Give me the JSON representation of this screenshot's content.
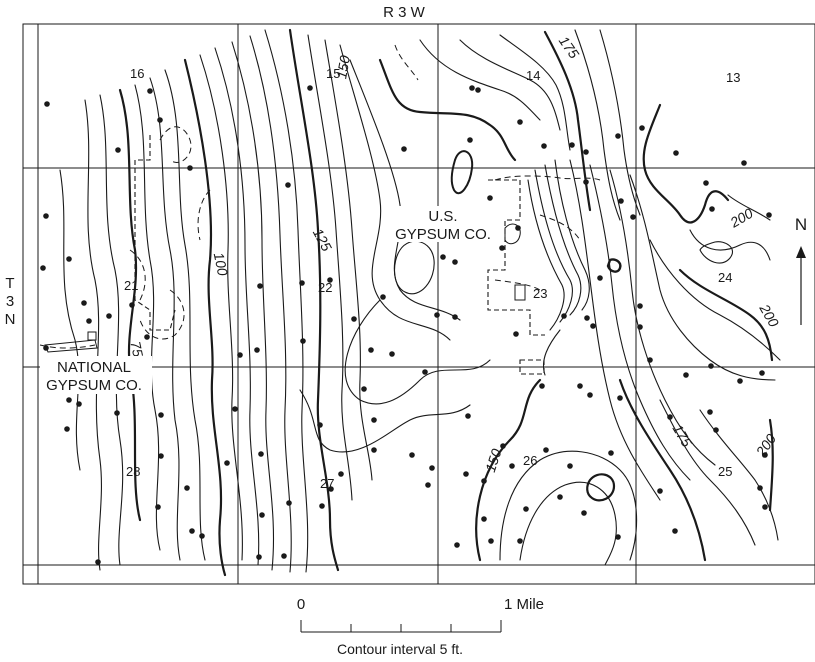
{
  "range_label": "R 3 W",
  "township_label": [
    "T",
    "3",
    "N"
  ],
  "north_label": "N",
  "sections": [
    "16",
    "15",
    "14",
    "13",
    "21",
    "22",
    "23",
    "24",
    "28",
    "27",
    "26",
    "25"
  ],
  "companies": {
    "us_gypsum": [
      "U.S.",
      "GYPSUM CO."
    ],
    "national_gypsum": [
      "NATIONAL",
      "GYPSUM CO."
    ]
  },
  "contour_labels": [
    "150",
    "175",
    "125",
    "100",
    "75",
    "200",
    "200",
    "200",
    "175",
    "150"
  ],
  "scale": {
    "start": "0",
    "end": "1 Mile"
  },
  "contour_interval": "Contour interval 5 ft.",
  "colors": {
    "ink": "#1a1a1a",
    "paper": "#ffffff"
  }
}
